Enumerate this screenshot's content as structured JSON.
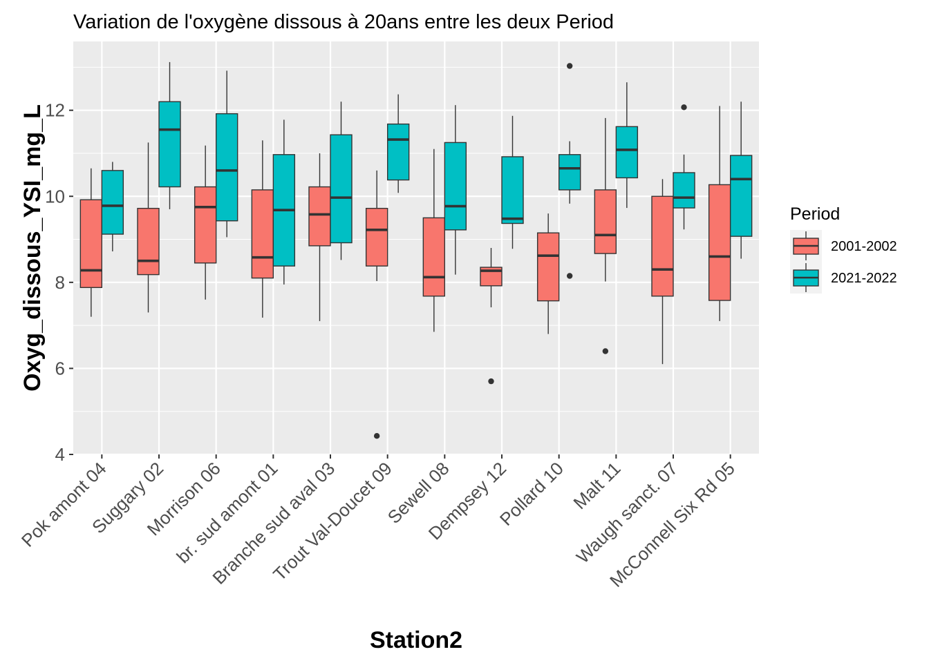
{
  "chart_data": {
    "type": "boxplot",
    "title": "Variation  de l'oxygène dissous à 20ans entre les deux Period",
    "xlabel": "Station2",
    "ylabel": "Oxyg_dissous_YSI_mg_L",
    "ylim": [
      4,
      13.6
    ],
    "yticks": [
      4,
      6,
      8,
      10,
      12
    ],
    "grid": true,
    "legend_position": "right",
    "legend_title": "Period",
    "categories": [
      "Pok amont 04",
      "Suggary 02",
      "Morrison 06",
      "br. sud amont 01",
      "Branche sud aval 03",
      "Trout Val-Doucet 09",
      "Sewell 08",
      "Dempsey 12",
      "Pollard 10",
      "Malt 11",
      "Waugh sanct. 07",
      "McConnell Six Rd 05"
    ],
    "series": [
      {
        "name": "2001-2002",
        "color": "#f8766d",
        "boxes": [
          {
            "min": 7.2,
            "q1": 7.88,
            "median": 8.28,
            "q3": 9.92,
            "max": 10.65,
            "outliers": []
          },
          {
            "min": 7.3,
            "q1": 8.18,
            "median": 8.5,
            "q3": 9.72,
            "max": 11.25,
            "outliers": []
          },
          {
            "min": 7.6,
            "q1": 8.45,
            "median": 9.75,
            "q3": 10.22,
            "max": 11.18,
            "outliers": []
          },
          {
            "min": 7.18,
            "q1": 8.1,
            "median": 8.58,
            "q3": 10.15,
            "max": 11.3,
            "outliers": []
          },
          {
            "min": 7.1,
            "q1": 8.85,
            "median": 9.58,
            "q3": 10.22,
            "max": 11.0,
            "outliers": []
          },
          {
            "min": 8.03,
            "q1": 8.38,
            "median": 9.22,
            "q3": 9.72,
            "max": 10.6,
            "outliers": [
              4.43
            ]
          },
          {
            "min": 6.85,
            "q1": 7.68,
            "median": 8.12,
            "q3": 9.5,
            "max": 11.1,
            "outliers": []
          },
          {
            "min": 7.42,
            "q1": 7.92,
            "median": 8.27,
            "q3": 8.35,
            "max": 8.8,
            "outliers": [
              5.7
            ]
          },
          {
            "min": 6.8,
            "q1": 7.57,
            "median": 8.62,
            "q3": 9.15,
            "max": 9.6,
            "outliers": []
          },
          {
            "min": 8.02,
            "q1": 8.67,
            "median": 9.1,
            "q3": 10.15,
            "max": 11.82,
            "outliers": [
              6.4
            ]
          },
          {
            "min": 6.1,
            "q1": 7.68,
            "median": 8.3,
            "q3": 10.0,
            "max": 10.4,
            "outliers": []
          },
          {
            "min": 7.1,
            "q1": 7.58,
            "median": 8.6,
            "q3": 10.27,
            "max": 12.1,
            "outliers": []
          }
        ]
      },
      {
        "name": "2021-2022",
        "color": "#00bfc4",
        "boxes": [
          {
            "min": 8.72,
            "q1": 9.12,
            "median": 9.78,
            "q3": 10.6,
            "max": 10.8,
            "outliers": []
          },
          {
            "min": 9.7,
            "q1": 10.22,
            "median": 11.55,
            "q3": 12.2,
            "max": 13.12,
            "outliers": []
          },
          {
            "min": 9.05,
            "q1": 9.43,
            "median": 10.6,
            "q3": 11.92,
            "max": 12.92,
            "outliers": []
          },
          {
            "min": 7.95,
            "q1": 8.38,
            "median": 9.68,
            "q3": 10.97,
            "max": 11.78,
            "outliers": []
          },
          {
            "min": 8.52,
            "q1": 8.92,
            "median": 9.97,
            "q3": 11.43,
            "max": 12.2,
            "outliers": []
          },
          {
            "min": 10.08,
            "q1": 10.38,
            "median": 11.32,
            "q3": 11.68,
            "max": 12.37,
            "outliers": []
          },
          {
            "min": 8.18,
            "q1": 9.22,
            "median": 9.77,
            "q3": 11.25,
            "max": 12.12,
            "outliers": []
          },
          {
            "min": 8.78,
            "q1": 9.37,
            "median": 9.48,
            "q3": 10.92,
            "max": 11.87,
            "outliers": []
          },
          {
            "min": 9.83,
            "q1": 10.15,
            "median": 10.65,
            "q3": 10.97,
            "max": 11.28,
            "outliers": [
              13.03,
              8.15
            ]
          },
          {
            "min": 9.73,
            "q1": 10.43,
            "median": 11.08,
            "q3": 11.62,
            "max": 12.65,
            "outliers": []
          },
          {
            "min": 9.23,
            "q1": 9.73,
            "median": 9.97,
            "q3": 10.55,
            "max": 10.97,
            "outliers": [
              12.07
            ]
          },
          {
            "min": 8.55,
            "q1": 9.07,
            "median": 10.4,
            "q3": 10.95,
            "max": 12.2,
            "outliers": []
          }
        ]
      }
    ]
  }
}
